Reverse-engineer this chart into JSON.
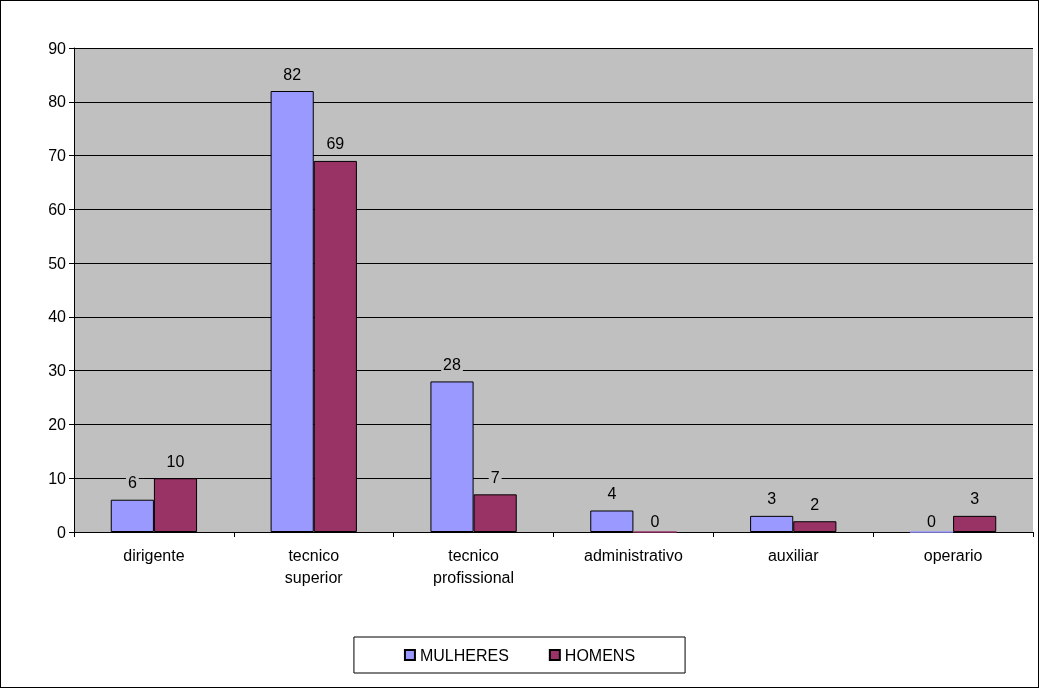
{
  "chart_data": {
    "type": "bar",
    "categories": [
      "dirigente",
      "tecnico\nsuperior",
      "tecnico\nprofissional",
      "administrativo",
      "auxiliar",
      "operario"
    ],
    "series": [
      {
        "name": "MULHERES",
        "color": "#9999ff",
        "values": [
          6,
          82,
          28,
          4,
          3,
          0
        ]
      },
      {
        "name": "HOMENS",
        "color": "#993366",
        "values": [
          10,
          69,
          7,
          0,
          2,
          3
        ]
      }
    ],
    "ylim": [
      0,
      90
    ],
    "yticks": [
      0,
      10,
      20,
      30,
      40,
      50,
      60,
      70,
      80,
      90
    ],
    "grid": "y",
    "legend": "bottom",
    "data_labels": true
  }
}
